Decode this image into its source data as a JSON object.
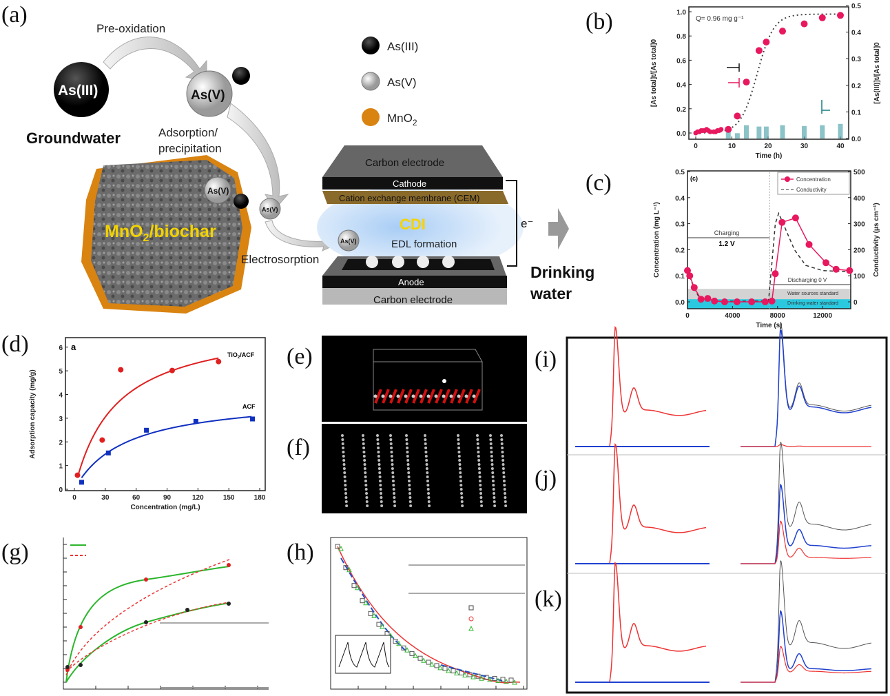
{
  "panels": {
    "a": "(a)",
    "b": "(b)",
    "c": "(c)",
    "d": "(d)",
    "e": "(e)",
    "f": "(f)",
    "g": "(g)",
    "h": "(h)",
    "i": "(i)",
    "j": "(j)",
    "k": "(k)"
  },
  "diagram_a": {
    "pre_oxidation": "Pre-oxidation",
    "as3": "As(III)",
    "as5": "As(V)",
    "groundwater": "Groundwater",
    "adsorption_1": "Adsorption/",
    "adsorption_2": "precipitation",
    "biochar_base": "MnO",
    "biochar_sub": "2",
    "biochar_rest": "/biochar",
    "electrosorption": "Electrosorption",
    "legend": {
      "as3": "As(III)",
      "as5": "As(V)",
      "mno2_base": "MnO",
      "mno2_sub": "2"
    },
    "cdi": {
      "carbon_top": "Carbon electrode",
      "cathode": "Cathode",
      "cem": "Cation exchange membrane (CEM)",
      "cdi": "CDI",
      "edl": "EDL formation",
      "anode": "Anode",
      "carbon_bottom": "Carbon electrode",
      "electron": "e⁻",
      "drinking_1": "Drinking",
      "drinking_2": "water"
    },
    "colors": {
      "mno2": "#d98311",
      "cdi_text": "#f5d300",
      "biochar_text": "#f2d200"
    }
  },
  "chart_data": [
    {
      "id": "b",
      "type": "scatter",
      "annotation": "Q= 0.96 mg g⁻¹",
      "xlabel": "Time (h)",
      "ylabel": "[As total]t/[As total]0",
      "y2label": "[As(III)]t/[As total]0",
      "xlim": [
        0,
        40
      ],
      "ylim": [
        0,
        1.0
      ],
      "y2lim": [
        0,
        0.5
      ],
      "xticks": [
        "0",
        "10",
        "20",
        "30",
        "40"
      ],
      "yticks": [
        "0.0",
        "0.2",
        "0.4",
        "0.6",
        "0.8",
        "1.0"
      ],
      "y2ticks": [
        "0.0",
        "0.1",
        "0.2",
        "0.3",
        "0.4",
        "0.5"
      ],
      "series": [
        {
          "kind": "points",
          "color": "#e8185f",
          "x": [
            0,
            0.5,
            1,
            1.5,
            2,
            2.5,
            3,
            3.5,
            4,
            5,
            5.5,
            6,
            6.5,
            7,
            9,
            11.5,
            14,
            17.5,
            19.5,
            24,
            30,
            35,
            40
          ],
          "y": [
            0,
            0.01,
            0.01,
            0.02,
            0.02,
            0.02,
            0.03,
            0.02,
            0.01,
            0.01,
            0.01,
            0.02,
            0.02,
            0.03,
            0.03,
            0.14,
            0.42,
            0.68,
            0.75,
            0.84,
            0.9,
            0.95,
            0.97
          ]
        },
        {
          "kind": "bars",
          "axis": "right",
          "color": "#5aa9b0",
          "x": [
            9,
            11.5,
            14,
            17.5,
            19.5,
            24,
            30,
            35,
            40
          ],
          "y": [
            0.03,
            0.02,
            0.05,
            0.045,
            0.045,
            0.05,
            0.047,
            0.05,
            0.055
          ]
        },
        {
          "kind": "fit",
          "style": "dotted",
          "color": "#444"
        }
      ]
    },
    {
      "id": "c",
      "type": "line",
      "panel_tag": "(c)",
      "xlabel": "Time (s)",
      "ylabel": "Concentration (mg L⁻¹)",
      "y2label": "Conductivity (μs cm⁻¹)",
      "xlim": [
        0,
        14500
      ],
      "ylim": [
        0,
        0.5
      ],
      "y2lim": [
        0,
        500
      ],
      "xticks": [
        "0",
        "4000",
        "8000",
        "12000"
      ],
      "yticks": [
        "0.0",
        "0.1",
        "0.2",
        "0.3",
        "0.4",
        "0.5"
      ],
      "y2ticks": [
        "0",
        "100",
        "200",
        "300",
        "400",
        "500"
      ],
      "legend": "top-right",
      "series": [
        {
          "name": "Concentration",
          "color": "#e8185f",
          "x": [
            0,
            200,
            600,
            1200,
            1800,
            2400,
            3300,
            4400,
            5700,
            6900,
            7500,
            7800,
            8400,
            9600,
            10800,
            12300,
            13200,
            14400
          ],
          "y": [
            0.12,
            0.1,
            0.055,
            0.01,
            0.013,
            0.003,
            0,
            0,
            0,
            0,
            0.003,
            0.108,
            0.305,
            0.322,
            0.22,
            0.15,
            0.125,
            0.12
          ]
        },
        {
          "name": "Conductivity",
          "axis": "right",
          "style": "dashed",
          "color": "#333",
          "x": [
            0,
            600,
            1200,
            3000,
            7200,
            7500,
            7800,
            8100,
            8500,
            9500,
            10500,
            12000,
            14400
          ],
          "y": [
            120,
            50,
            5,
            2,
            3,
            150,
            300,
            340,
            300,
            200,
            140,
            120,
            115
          ]
        }
      ],
      "annotations": {
        "charging": "Charging",
        "voltage": "1.2 V",
        "discharging": "Discharging 0 V",
        "water_sources": "Water sources standard",
        "drinking_std": "Drinking water standard"
      },
      "standards": {
        "water_sources": 0.05,
        "drinking": 0.01
      }
    },
    {
      "id": "d",
      "type": "scatter",
      "panel_tag": "a",
      "xlabel": "Concentration (mg/L)",
      "ylabel": "Adsorption capacity (mg/g)",
      "xlim": [
        0,
        180
      ],
      "ylim": [
        0,
        6.4
      ],
      "xticks": [
        "0",
        "30",
        "60",
        "90",
        "120",
        "150",
        "180"
      ],
      "yticks": [
        "0",
        "1",
        "2",
        "3",
        "4",
        "5",
        "6"
      ],
      "series": [
        {
          "name": "TiO2/ACF",
          "label_base": "TiO",
          "label_sub": "2",
          "label_rest": "/ACF",
          "color": "#e02020",
          "marker": "circle",
          "x": [
            3,
            27,
            45,
            95,
            140
          ],
          "y": [
            0.6,
            2.1,
            5.1,
            5.07,
            5.45
          ]
        },
        {
          "name": "ACF",
          "color": "#1030c0",
          "marker": "square",
          "x": [
            7,
            33,
            70,
            118,
            173
          ],
          "y": [
            0.3,
            1.55,
            2.52,
            2.9,
            3.0
          ]
        }
      ]
    }
  ]
}
